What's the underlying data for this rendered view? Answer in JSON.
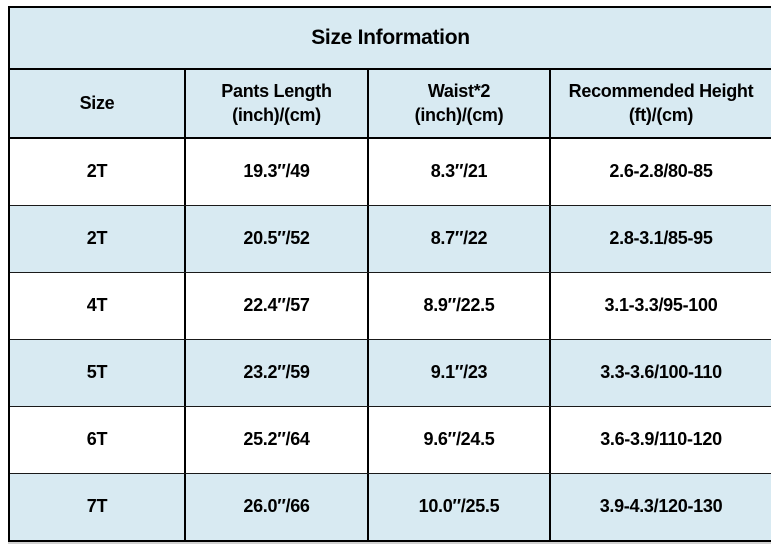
{
  "table": {
    "title": "Size Information",
    "columns": [
      {
        "label": "Size"
      },
      {
        "label": "Pants Length\n(inch)/(cm)"
      },
      {
        "label": "Waist*2\n(inch)/(cm)"
      },
      {
        "label": "Recommended Height\n(ft)/(cm)"
      }
    ],
    "rows": [
      {
        "size": "2T",
        "pants_length": "19.3″/49",
        "waist_x2": "8.3″/21",
        "recommended_height": "2.6-2.8/80-85"
      },
      {
        "size": "2T",
        "pants_length": "20.5″/52",
        "waist_x2": "8.7″/22",
        "recommended_height": "2.8-3.1/85-95"
      },
      {
        "size": "4T",
        "pants_length": "22.4″/57",
        "waist_x2": "8.9″/22.5",
        "recommended_height": "3.1-3.3/95-100"
      },
      {
        "size": "5T",
        "pants_length": "23.2″/59",
        "waist_x2": "9.1″/23",
        "recommended_height": "3.3-3.6/100-110"
      },
      {
        "size": "6T",
        "pants_length": "25.2″/64",
        "waist_x2": "9.6″/24.5",
        "recommended_height": "3.6-3.9/110-120"
      },
      {
        "size": "7T",
        "pants_length": "26.0″/66",
        "waist_x2": "10.0″/25.5",
        "recommended_height": "3.9-4.3/120-130"
      }
    ]
  },
  "colors": {
    "row_highlight": "#d8eaf2",
    "row_plain": "#ffffff",
    "border": "#000000",
    "text": "#000000"
  }
}
